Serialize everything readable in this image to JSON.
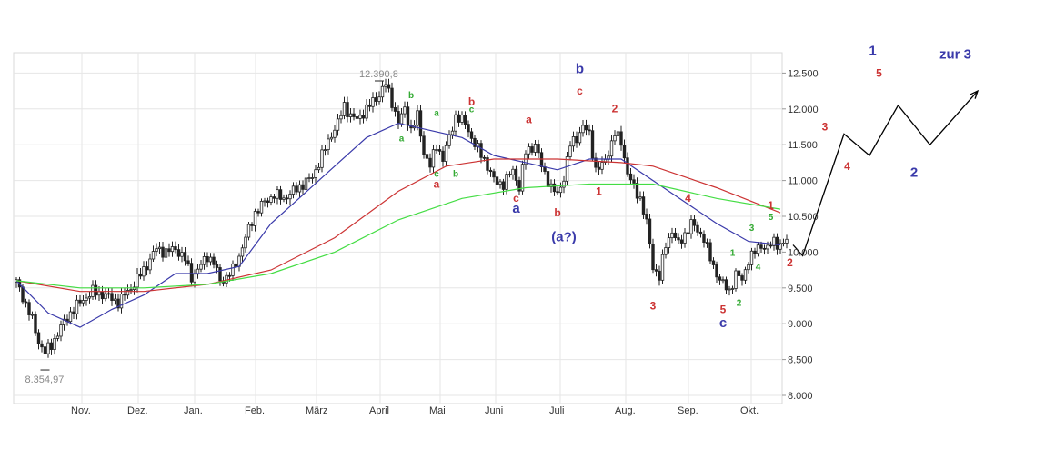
{
  "chart_data": {
    "type": "line",
    "title": "",
    "xlabel": "",
    "ylabel": "",
    "ylim": [
      7900,
      12650
    ],
    "grid": true,
    "y_ticks": [
      8000,
      8500,
      9000,
      9500,
      10000,
      10500,
      11000,
      11500,
      12000,
      12500
    ],
    "y_tick_labels": [
      "8.000",
      "8.500",
      "9.000",
      "9.500",
      "10.000",
      "10.500",
      "11.000",
      "11.500",
      "12.000",
      "12.500"
    ],
    "months": [
      "Nov.",
      "Dez.",
      "Jan.",
      "Feb.",
      "März",
      "April",
      "Mai",
      "Juni",
      "Juli",
      "Aug.",
      "Sep.",
      "Okt."
    ],
    "price_anchors": [
      [
        0,
        9580
      ],
      [
        2,
        9380
      ],
      [
        5,
        9050
      ],
      [
        7,
        8750
      ],
      [
        9,
        8600
      ],
      [
        11,
        8700
      ],
      [
        14,
        8950
      ],
      [
        17,
        9150
      ],
      [
        20,
        9300
      ],
      [
        24,
        9450
      ],
      [
        28,
        9400
      ],
      [
        32,
        9300
      ],
      [
        36,
        9500
      ],
      [
        40,
        9750
      ],
      [
        44,
        10050
      ],
      [
        47,
        10000
      ],
      [
        50,
        10050
      ],
      [
        53,
        9900
      ],
      [
        55,
        9650
      ],
      [
        57,
        9750
      ],
      [
        60,
        9950
      ],
      [
        62,
        9850
      ],
      [
        64,
        9600
      ],
      [
        66,
        9650
      ],
      [
        68,
        9750
      ],
      [
        70,
        9950
      ],
      [
        72,
        10200
      ],
      [
        75,
        10550
      ],
      [
        78,
        10700
      ],
      [
        81,
        10800
      ],
      [
        84,
        10750
      ],
      [
        87,
        10850
      ],
      [
        90,
        10950
      ],
      [
        93,
        11050
      ],
      [
        96,
        11350
      ],
      [
        99,
        11650
      ],
      [
        101,
        11800
      ],
      [
        103,
        12050
      ],
      [
        105,
        11900
      ],
      [
        107,
        11850
      ],
      [
        109,
        11950
      ],
      [
        111,
        12050
      ],
      [
        114,
        12200
      ],
      [
        116,
        12350
      ],
      [
        118,
        12100
      ],
      [
        120,
        11800
      ],
      [
        122,
        12000
      ],
      [
        124,
        11700
      ],
      [
        126,
        11900
      ],
      [
        128,
        11400
      ],
      [
        130,
        11200
      ],
      [
        132,
        11500
      ],
      [
        134,
        11300
      ],
      [
        136,
        11600
      ],
      [
        138,
        11900
      ],
      [
        141,
        11800
      ],
      [
        144,
        11500
      ],
      [
        147,
        11300
      ],
      [
        150,
        11000
      ],
      [
        153,
        10950
      ],
      [
        156,
        11150
      ],
      [
        158,
        10900
      ],
      [
        160,
        11400
      ],
      [
        163,
        11500
      ],
      [
        165,
        11200
      ],
      [
        168,
        10900
      ],
      [
        170,
        10800
      ],
      [
        172,
        11050
      ],
      [
        174,
        11500
      ],
      [
        176,
        11600
      ],
      [
        178,
        11750
      ],
      [
        180,
        11650
      ],
      [
        182,
        11150
      ],
      [
        184,
        11200
      ],
      [
        186,
        11400
      ],
      [
        188,
        11650
      ],
      [
        190,
        11550
      ],
      [
        192,
        11100
      ],
      [
        194,
        10900
      ],
      [
        196,
        10750
      ],
      [
        198,
        10400
      ],
      [
        200,
        9800
      ],
      [
        202,
        9650
      ],
      [
        204,
        10100
      ],
      [
        206,
        10300
      ],
      [
        208,
        10100
      ],
      [
        210,
        10250
      ],
      [
        212,
        10400
      ],
      [
        214,
        10300
      ],
      [
        216,
        10200
      ],
      [
        218,
        9900
      ],
      [
        220,
        9700
      ],
      [
        222,
        9550
      ],
      [
        224,
        9450
      ],
      [
        226,
        9700
      ],
      [
        228,
        9600
      ],
      [
        230,
        9900
      ],
      [
        232,
        10000
      ],
      [
        234,
        10100
      ],
      [
        236,
        10050
      ],
      [
        238,
        10150
      ],
      [
        240,
        10100
      ],
      [
        242,
        10150
      ]
    ],
    "series": [
      {
        "color": "#3a3aaa",
        "points": [
          [
            0,
            9600
          ],
          [
            10,
            9150
          ],
          [
            20,
            8950
          ],
          [
            30,
            9200
          ],
          [
            40,
            9400
          ],
          [
            50,
            9700
          ],
          [
            60,
            9700
          ],
          [
            70,
            9800
          ],
          [
            80,
            10400
          ],
          [
            90,
            10800
          ],
          [
            100,
            11200
          ],
          [
            110,
            11600
          ],
          [
            120,
            11800
          ],
          [
            130,
            11700
          ],
          [
            140,
            11600
          ],
          [
            150,
            11350
          ],
          [
            160,
            11250
          ],
          [
            170,
            11150
          ],
          [
            180,
            11300
          ],
          [
            190,
            11300
          ],
          [
            200,
            11000
          ],
          [
            210,
            10700
          ],
          [
            220,
            10400
          ],
          [
            230,
            10150
          ],
          [
            240,
            10100
          ]
        ]
      },
      {
        "color": "#cc3333",
        "points": [
          [
            0,
            9600
          ],
          [
            20,
            9450
          ],
          [
            40,
            9450
          ],
          [
            60,
            9550
          ],
          [
            80,
            9750
          ],
          [
            100,
            10200
          ],
          [
            120,
            10850
          ],
          [
            135,
            11200
          ],
          [
            150,
            11300
          ],
          [
            170,
            11300
          ],
          [
            190,
            11250
          ],
          [
            200,
            11200
          ],
          [
            220,
            10900
          ],
          [
            240,
            10550
          ]
        ]
      },
      {
        "color": "#44dd44",
        "points": [
          [
            0,
            9600
          ],
          [
            20,
            9500
          ],
          [
            40,
            9500
          ],
          [
            60,
            9550
          ],
          [
            80,
            9700
          ],
          [
            100,
            10000
          ],
          [
            120,
            10450
          ],
          [
            140,
            10750
          ],
          [
            160,
            10900
          ],
          [
            180,
            10950
          ],
          [
            200,
            10950
          ],
          [
            220,
            10750
          ],
          [
            240,
            10600
          ]
        ]
      }
    ],
    "projection": {
      "color": "#000000",
      "points": [
        [
          244,
          10100
        ],
        [
          247,
          9950
        ],
        [
          260,
          11650
        ],
        [
          268,
          11350
        ],
        [
          277,
          12050
        ],
        [
          287,
          11500
        ],
        [
          302,
          12250
        ]
      ]
    },
    "extremes": {
      "high": {
        "x": 114,
        "y": 12390.8,
        "label": "12.390,8"
      },
      "low": {
        "x": 9,
        "y": 8354.97,
        "label": "8.354,97"
      }
    },
    "wave_labels": [
      {
        "text": "a",
        "x": 121,
        "y": 11550,
        "color": "#33aa33"
      },
      {
        "text": "b",
        "x": 124,
        "y": 12150,
        "color": "#33aa33"
      },
      {
        "text": "a",
        "x": 132,
        "y": 11900,
        "color": "#33aa33"
      },
      {
        "text": "c",
        "x": 132,
        "y": 11050,
        "color": "#33aa33"
      },
      {
        "text": "a",
        "x": 132,
        "y": 10900,
        "color": "#cc3333"
      },
      {
        "text": "b",
        "x": 138,
        "y": 11050,
        "color": "#33aa33"
      },
      {
        "text": "c",
        "x": 143,
        "y": 11950,
        "color": "#33aa33"
      },
      {
        "text": "b",
        "x": 143,
        "y": 12050,
        "color": "#cc3333"
      },
      {
        "text": "c",
        "x": 157,
        "y": 10700,
        "color": "#cc3333"
      },
      {
        "text": "a",
        "x": 157,
        "y": 10550,
        "color": "#3a3aaa"
      },
      {
        "text": "a",
        "x": 161,
        "y": 11800,
        "color": "#cc3333"
      },
      {
        "text": "b",
        "x": 170,
        "y": 10500,
        "color": "#cc3333"
      },
      {
        "text": "(a?)",
        "x": 172,
        "y": 10150,
        "color": "#3a3aaa"
      },
      {
        "text": "b",
        "x": 177,
        "y": 12500,
        "color": "#3a3aaa"
      },
      {
        "text": "c",
        "x": 177,
        "y": 12200,
        "color": "#cc3333"
      },
      {
        "text": "1",
        "x": 183,
        "y": 10800,
        "color": "#cc3333"
      },
      {
        "text": "2",
        "x": 188,
        "y": 11950,
        "color": "#cc3333"
      },
      {
        "text": "3",
        "x": 200,
        "y": 9200,
        "color": "#cc3333"
      },
      {
        "text": "4",
        "x": 211,
        "y": 10700,
        "color": "#cc3333"
      },
      {
        "text": "5",
        "x": 222,
        "y": 9150,
        "color": "#cc3333"
      },
      {
        "text": "c",
        "x": 222,
        "y": 8950,
        "color": "#3a3aaa"
      },
      {
        "text": "1",
        "x": 225,
        "y": 9950,
        "color": "#33aa33"
      },
      {
        "text": "2",
        "x": 227,
        "y": 9250,
        "color": "#33aa33"
      },
      {
        "text": "3",
        "x": 231,
        "y": 10300,
        "color": "#33aa33"
      },
      {
        "text": "4",
        "x": 233,
        "y": 9750,
        "color": "#33aa33"
      },
      {
        "text": "1",
        "x": 237,
        "y": 10600,
        "color": "#cc3333"
      },
      {
        "text": "5",
        "x": 237,
        "y": 10450,
        "color": "#33aa33"
      },
      {
        "text": "2",
        "x": 243,
        "y": 9800,
        "color": "#cc3333"
      },
      {
        "text": "3",
        "x": 254,
        "y": 11700,
        "color": "#cc3333"
      },
      {
        "text": "4",
        "x": 261,
        "y": 11150,
        "color": "#cc3333"
      },
      {
        "text": "1",
        "x": 269,
        "y": 12750,
        "color": "#3a3aaa"
      },
      {
        "text": "5",
        "x": 271,
        "y": 12450,
        "color": "#cc3333"
      },
      {
        "text": "2",
        "x": 282,
        "y": 11050,
        "color": "#3a3aaa"
      },
      {
        "text": "zur 3",
        "x": 295,
        "y": 12700,
        "color": "#3a3aaa"
      }
    ]
  }
}
